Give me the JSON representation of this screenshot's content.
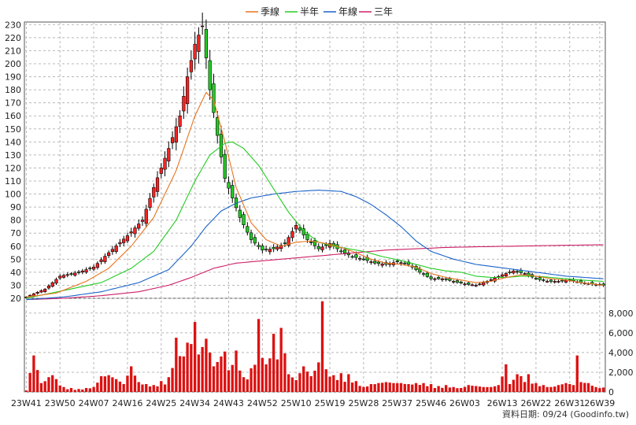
{
  "chart_data": {
    "type": "candlestick",
    "legend": [
      {
        "name": "季線",
        "color": "#e8731c"
      },
      {
        "name": "半年",
        "color": "#22cc22"
      },
      {
        "name": "年線",
        "color": "#1a62c8"
      },
      {
        "name": "三年",
        "color": "#cc1f66"
      }
    ],
    "price_axis": {
      "ylim": [
        20,
        232
      ],
      "ticks": [
        20,
        30,
        40,
        50,
        60,
        70,
        80,
        90,
        100,
        110,
        120,
        130,
        140,
        150,
        160,
        170,
        180,
        190,
        200,
        210,
        220,
        230
      ]
    },
    "volume_axis": {
      "ylim": [
        0,
        9500
      ],
      "ticks": [
        0,
        2000,
        4000,
        6000,
        8000
      ],
      "tick_labels": [
        "0",
        "2,000",
        "4,000",
        "6,000",
        "8,000"
      ]
    },
    "x_labels": [
      "23W41",
      "23W50",
      "24W07",
      "24W16",
      "24W25",
      "24W34",
      "24W43",
      "24W52",
      "25W10",
      "25W19",
      "25W28",
      "25W37",
      "25W46",
      "26W03",
      "26W13",
      "26W22",
      "26W31",
      "26W39"
    ],
    "x_label_index": [
      0,
      9,
      18,
      27,
      36,
      45,
      54,
      63,
      72,
      81,
      90,
      99,
      108,
      117,
      127,
      136,
      145,
      153
    ],
    "n_bars": 155,
    "close_keypoints": [
      [
        0,
        21
      ],
      [
        5,
        27
      ],
      [
        9,
        37
      ],
      [
        14,
        40
      ],
      [
        18,
        44
      ],
      [
        22,
        55
      ],
      [
        27,
        68
      ],
      [
        31,
        80
      ],
      [
        34,
        105
      ],
      [
        38,
        135
      ],
      [
        41,
        160
      ],
      [
        43,
        190
      ],
      [
        45,
        215
      ],
      [
        47,
        229
      ],
      [
        49,
        180
      ],
      [
        51,
        145
      ],
      [
        53,
        112
      ],
      [
        55,
        97
      ],
      [
        57,
        82
      ],
      [
        60,
        65
      ],
      [
        63,
        57
      ],
      [
        66,
        58
      ],
      [
        69,
        62
      ],
      [
        72,
        76
      ],
      [
        75,
        65
      ],
      [
        78,
        58
      ],
      [
        81,
        62
      ],
      [
        84,
        56
      ],
      [
        87,
        52
      ],
      [
        90,
        50
      ],
      [
        93,
        47
      ],
      [
        96,
        46
      ],
      [
        99,
        48
      ],
      [
        102,
        46
      ],
      [
        105,
        40
      ],
      [
        108,
        35
      ],
      [
        111,
        35
      ],
      [
        114,
        33
      ],
      [
        117,
        31
      ],
      [
        120,
        30
      ],
      [
        123,
        33
      ],
      [
        127,
        38
      ],
      [
        130,
        41
      ],
      [
        133,
        39
      ],
      [
        136,
        35
      ],
      [
        139,
        33
      ],
      [
        142,
        33
      ],
      [
        145,
        34
      ],
      [
        148,
        32
      ],
      [
        151,
        31
      ],
      [
        154,
        30
      ]
    ],
    "ma_quarter": [
      [
        0,
        21
      ],
      [
        8,
        24
      ],
      [
        16,
        33
      ],
      [
        22,
        43
      ],
      [
        28,
        60
      ],
      [
        34,
        82
      ],
      [
        40,
        118
      ],
      [
        45,
        160
      ],
      [
        48,
        178
      ],
      [
        50,
        172
      ],
      [
        53,
        140
      ],
      [
        56,
        105
      ],
      [
        60,
        78
      ],
      [
        64,
        65
      ],
      [
        68,
        60
      ],
      [
        72,
        63
      ],
      [
        76,
        64
      ],
      [
        80,
        62
      ],
      [
        84,
        59
      ],
      [
        88,
        55
      ],
      [
        92,
        50
      ],
      [
        96,
        47
      ],
      [
        100,
        46
      ],
      [
        104,
        44
      ],
      [
        108,
        39
      ],
      [
        112,
        36
      ],
      [
        116,
        34
      ],
      [
        120,
        32
      ],
      [
        124,
        33
      ],
      [
        128,
        36
      ],
      [
        132,
        38
      ],
      [
        136,
        37
      ],
      [
        140,
        35
      ],
      [
        144,
        34
      ],
      [
        148,
        32
      ],
      [
        154,
        30
      ]
    ],
    "ma_half": [
      [
        0,
        20
      ],
      [
        10,
        26
      ],
      [
        20,
        32
      ],
      [
        28,
        43
      ],
      [
        34,
        56
      ],
      [
        40,
        80
      ],
      [
        45,
        110
      ],
      [
        49,
        130
      ],
      [
        53,
        139
      ],
      [
        55,
        140
      ],
      [
        58,
        135
      ],
      [
        62,
        122
      ],
      [
        66,
        104
      ],
      [
        70,
        86
      ],
      [
        74,
        72
      ],
      [
        78,
        63
      ],
      [
        82,
        60
      ],
      [
        86,
        58
      ],
      [
        90,
        56
      ],
      [
        95,
        52
      ],
      [
        100,
        49
      ],
      [
        104,
        46
      ],
      [
        108,
        43
      ],
      [
        112,
        41
      ],
      [
        116,
        40
      ],
      [
        120,
        37
      ],
      [
        124,
        36
      ],
      [
        128,
        36
      ],
      [
        132,
        37
      ],
      [
        136,
        37
      ],
      [
        140,
        36
      ],
      [
        144,
        35
      ],
      [
        148,
        34
      ],
      [
        154,
        33
      ]
    ],
    "ma_year": [
      [
        0,
        19
      ],
      [
        10,
        21
      ],
      [
        20,
        25
      ],
      [
        30,
        32
      ],
      [
        38,
        42
      ],
      [
        44,
        60
      ],
      [
        48,
        75
      ],
      [
        52,
        87
      ],
      [
        56,
        93
      ],
      [
        60,
        97
      ],
      [
        66,
        100
      ],
      [
        72,
        102
      ],
      [
        78,
        103
      ],
      [
        84,
        102
      ],
      [
        88,
        98
      ],
      [
        92,
        92
      ],
      [
        96,
        84
      ],
      [
        100,
        75
      ],
      [
        104,
        64
      ],
      [
        108,
        56
      ],
      [
        114,
        50
      ],
      [
        120,
        46
      ],
      [
        128,
        43
      ],
      [
        136,
        40
      ],
      [
        144,
        37
      ],
      [
        154,
        35
      ]
    ],
    "ma_3year": [
      [
        0,
        19
      ],
      [
        10,
        20
      ],
      [
        20,
        22
      ],
      [
        30,
        25
      ],
      [
        38,
        30
      ],
      [
        44,
        36
      ],
      [
        50,
        43
      ],
      [
        56,
        47
      ],
      [
        64,
        49
      ],
      [
        72,
        51
      ],
      [
        80,
        53
      ],
      [
        88,
        55
      ],
      [
        96,
        57
      ],
      [
        104,
        58
      ],
      [
        112,
        59
      ],
      [
        120,
        59.5
      ],
      [
        130,
        60
      ],
      [
        140,
        60.5
      ],
      [
        152,
        61
      ]
    ],
    "volume_keypoints": [
      [
        0,
        150
      ],
      [
        2,
        3700
      ],
      [
        4,
        900
      ],
      [
        6,
        1500
      ],
      [
        7,
        1700
      ],
      [
        8,
        1300
      ],
      [
        10,
        500
      ],
      [
        12,
        400
      ],
      [
        14,
        300
      ],
      [
        16,
        400
      ],
      [
        18,
        500
      ],
      [
        20,
        1600
      ],
      [
        22,
        1700
      ],
      [
        24,
        1300
      ],
      [
        26,
        800
      ],
      [
        28,
        2600
      ],
      [
        30,
        1000
      ],
      [
        32,
        800
      ],
      [
        34,
        700
      ],
      [
        36,
        1100
      ],
      [
        38,
        1500
      ],
      [
        40,
        5500
      ],
      [
        42,
        3600
      ],
      [
        43,
        5000
      ],
      [
        45,
        7100
      ],
      [
        46,
        3800
      ],
      [
        48,
        5400
      ],
      [
        50,
        2600
      ],
      [
        52,
        3600
      ],
      [
        53,
        4100
      ],
      [
        54,
        2200
      ],
      [
        56,
        4200
      ],
      [
        58,
        1500
      ],
      [
        60,
        2400
      ],
      [
        62,
        7400
      ],
      [
        64,
        2800
      ],
      [
        66,
        5900
      ],
      [
        67,
        3300
      ],
      [
        68,
        6500
      ],
      [
        70,
        1800
      ],
      [
        72,
        1200
      ],
      [
        74,
        2600
      ],
      [
        76,
        1600
      ],
      [
        78,
        3000
      ],
      [
        79,
        9200
      ],
      [
        80,
        2300
      ],
      [
        82,
        1700
      ],
      [
        84,
        1900
      ],
      [
        86,
        1800
      ],
      [
        88,
        1100
      ],
      [
        90,
        500
      ],
      [
        92,
        800
      ],
      [
        94,
        900
      ],
      [
        96,
        1000
      ],
      [
        98,
        900
      ],
      [
        100,
        900
      ],
      [
        102,
        800
      ],
      [
        104,
        900
      ],
      [
        106,
        900
      ],
      [
        108,
        800
      ],
      [
        110,
        600
      ],
      [
        112,
        700
      ],
      [
        114,
        500
      ],
      [
        116,
        400
      ],
      [
        118,
        700
      ],
      [
        120,
        600
      ],
      [
        122,
        500
      ],
      [
        124,
        500
      ],
      [
        126,
        700
      ],
      [
        128,
        2800
      ],
      [
        129,
        800
      ],
      [
        131,
        1800
      ],
      [
        132,
        1600
      ],
      [
        134,
        1800
      ],
      [
        136,
        900
      ],
      [
        138,
        700
      ],
      [
        140,
        500
      ],
      [
        142,
        700
      ],
      [
        144,
        900
      ],
      [
        146,
        700
      ],
      [
        147,
        3700
      ],
      [
        148,
        1000
      ],
      [
        150,
        900
      ],
      [
        152,
        500
      ],
      [
        154,
        450
      ]
    ]
  },
  "footer": {
    "source": "資料日期: 09/24  (Goodinfo.tw)"
  }
}
